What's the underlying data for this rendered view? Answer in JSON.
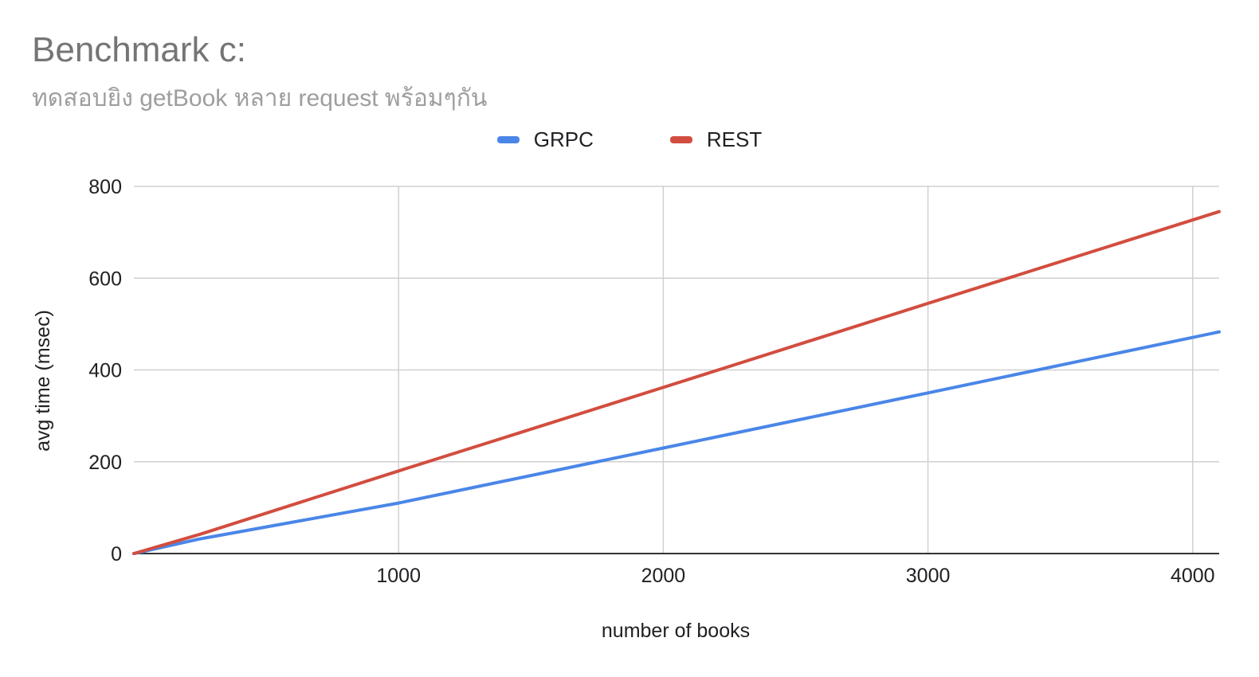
{
  "chart_data": {
    "type": "line",
    "title": "Benchmark c:",
    "subtitle": "ทดสอบยิง getBook หลาย request พร้อมๆกัน",
    "xlabel": "number of books",
    "ylabel": "avg time (msec)",
    "xlim": [
      0,
      4100
    ],
    "ylim": [
      0,
      800
    ],
    "x_ticks": [
      "1000",
      "2000",
      "3000",
      "4000"
    ],
    "y_ticks": [
      "0",
      "200",
      "400",
      "600",
      "800"
    ],
    "grid": true,
    "legend_position": "top",
    "series": [
      {
        "name": "GRPC",
        "color": "#4a86e8",
        "points": [
          [
            0,
            0
          ],
          [
            250,
            32
          ],
          [
            1000,
            110
          ],
          [
            2000,
            230
          ],
          [
            3000,
            350
          ],
          [
            4100,
            483
          ]
        ]
      },
      {
        "name": "REST",
        "color": "#d24d3f",
        "points": [
          [
            0,
            0
          ],
          [
            250,
            42
          ],
          [
            1000,
            180
          ],
          [
            2000,
            362
          ],
          [
            3000,
            545
          ],
          [
            4100,
            745
          ]
        ]
      }
    ]
  }
}
